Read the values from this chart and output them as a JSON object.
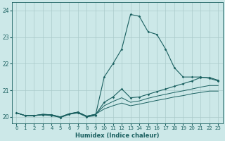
{
  "xlabel": "Humidex (Indice chaleur)",
  "bg_color": "#cce8e8",
  "grid_color": "#aacaca",
  "line_color": "#1a6060",
  "xlim": [
    -0.5,
    23.5
  ],
  "ylim": [
    19.75,
    24.3
  ],
  "xticks": [
    0,
    1,
    2,
    3,
    4,
    5,
    6,
    7,
    8,
    9,
    10,
    11,
    12,
    13,
    14,
    15,
    16,
    17,
    18,
    19,
    20,
    21,
    22,
    23
  ],
  "yticks": [
    20,
    21,
    22,
    23,
    24
  ],
  "line1_x": [
    0,
    1,
    2,
    3,
    4,
    5,
    6,
    7,
    8,
    9,
    10,
    11,
    12,
    13,
    14,
    15,
    16,
    17,
    18,
    19,
    20,
    21,
    22,
    23
  ],
  "line1_y": [
    20.15,
    20.05,
    20.05,
    20.08,
    20.08,
    19.98,
    20.1,
    20.15,
    20.0,
    20.05,
    21.5,
    22.0,
    22.55,
    23.85,
    23.78,
    23.2,
    23.1,
    22.55,
    21.85,
    21.5,
    21.5,
    21.5,
    21.45,
    21.35
  ],
  "line2_x": [
    0,
    1,
    2,
    3,
    4,
    5,
    6,
    7,
    8,
    9,
    10,
    11,
    12,
    13,
    14,
    15,
    16,
    17,
    18,
    19,
    20,
    21,
    22,
    23
  ],
  "line2_y": [
    20.15,
    20.05,
    20.05,
    20.08,
    20.05,
    19.98,
    20.1,
    20.18,
    20.02,
    20.08,
    20.55,
    20.75,
    21.05,
    20.72,
    20.75,
    20.85,
    20.95,
    21.05,
    21.15,
    21.25,
    21.35,
    21.48,
    21.48,
    21.38
  ],
  "line3_x": [
    0,
    1,
    2,
    3,
    4,
    5,
    6,
    7,
    8,
    9,
    10,
    11,
    12,
    13,
    14,
    15,
    16,
    17,
    18,
    19,
    20,
    21,
    22,
    23
  ],
  "line3_y": [
    20.15,
    20.05,
    20.05,
    20.1,
    20.08,
    20.0,
    20.12,
    20.18,
    20.03,
    20.1,
    20.42,
    20.58,
    20.72,
    20.55,
    20.6,
    20.7,
    20.78,
    20.85,
    20.92,
    20.98,
    21.05,
    21.12,
    21.18,
    21.18
  ],
  "line4_x": [
    0,
    1,
    2,
    3,
    4,
    5,
    6,
    7,
    8,
    9,
    10,
    11,
    12,
    13,
    14,
    15,
    16,
    17,
    18,
    19,
    20,
    21,
    22,
    23
  ],
  "line4_y": [
    20.15,
    20.05,
    20.05,
    20.1,
    20.08,
    20.0,
    20.12,
    20.18,
    20.03,
    20.1,
    20.3,
    20.42,
    20.52,
    20.42,
    20.48,
    20.55,
    20.62,
    20.68,
    20.75,
    20.8,
    20.87,
    20.92,
    20.97,
    20.97
  ]
}
